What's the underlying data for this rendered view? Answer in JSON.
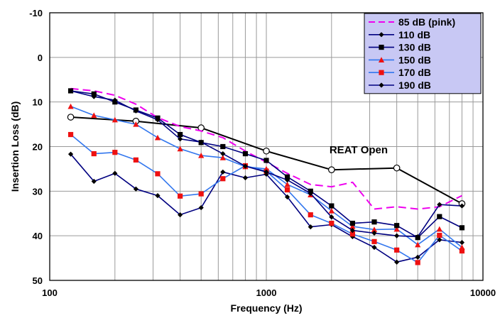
{
  "chart_data": {
    "type": "line",
    "title": "",
    "xlabel": "Frequency (Hz)",
    "ylabel": "Insertion Loss (dB)",
    "x_scale": "log",
    "xlim": [
      100,
      10000
    ],
    "ylim": [
      50,
      -10
    ],
    "y_inverted": true,
    "grid": true,
    "legend_position": "top-right",
    "x_ticks": [
      {
        "value": 100,
        "label": "100"
      },
      {
        "value": 1000,
        "label": "1000"
      },
      {
        "value": 10000,
        "label": "10000"
      }
    ],
    "y_ticks": [
      {
        "value": -10,
        "label": "-10"
      },
      {
        "value": 0,
        "label": "0"
      },
      {
        "value": 10,
        "label": "10"
      },
      {
        "value": 20,
        "label": "20"
      },
      {
        "value": 30,
        "label": "30"
      },
      {
        "value": 40,
        "label": "40"
      },
      {
        "value": 50,
        "label": "50"
      }
    ],
    "annotations": [
      {
        "text": "REAT Open",
        "x": 2000,
        "y": 21
      }
    ],
    "series": [
      {
        "name": "85 dB (pink)",
        "color": "#ee00ee",
        "dash": "dash",
        "marker": "none",
        "width": 2,
        "in_legend": true,
        "points": [
          [
            125,
            7
          ],
          [
            160,
            7.5
          ],
          [
            200,
            8.5
          ],
          [
            250,
            10.5
          ],
          [
            315,
            13.5
          ],
          [
            400,
            15.5
          ],
          [
            500,
            16.5
          ],
          [
            630,
            18
          ],
          [
            800,
            21
          ],
          [
            1000,
            23.5
          ],
          [
            1250,
            26
          ],
          [
            1600,
            28.5
          ],
          [
            2000,
            29
          ],
          [
            2500,
            28
          ],
          [
            3150,
            34
          ],
          [
            4000,
            33.5
          ],
          [
            5000,
            34
          ],
          [
            6300,
            33.5
          ],
          [
            8000,
            31
          ]
        ]
      },
      {
        "name": "110 dB",
        "color": "#000080",
        "dash": "solid",
        "marker": "diamond",
        "marker_color": "#000000",
        "width": 1.6,
        "in_legend": true,
        "points": [
          [
            125,
            7.5
          ],
          [
            160,
            8.8
          ],
          [
            200,
            9.6
          ],
          [
            250,
            12
          ],
          [
            315,
            14
          ],
          [
            400,
            18.3
          ],
          [
            500,
            19
          ],
          [
            630,
            21.6
          ],
          [
            800,
            24.4
          ],
          [
            1000,
            25.7
          ],
          [
            1250,
            27.5
          ],
          [
            1600,
            30.5
          ],
          [
            2000,
            35.8
          ],
          [
            2500,
            38.8
          ],
          [
            3150,
            39.4
          ],
          [
            4000,
            40
          ],
          [
            5000,
            40.2
          ],
          [
            6300,
            33
          ],
          [
            8000,
            33.3
          ]
        ]
      },
      {
        "name": "130 dB",
        "color": "#000080",
        "dash": "solid",
        "marker": "square",
        "marker_color": "#000000",
        "width": 1.6,
        "in_legend": true,
        "points": [
          [
            125,
            7.5
          ],
          [
            160,
            8.2
          ],
          [
            200,
            10
          ],
          [
            250,
            11.8
          ],
          [
            315,
            13.6
          ],
          [
            400,
            17.3
          ],
          [
            500,
            19.1
          ],
          [
            630,
            20
          ],
          [
            800,
            21.6
          ],
          [
            1000,
            23.1
          ],
          [
            1250,
            26.8
          ],
          [
            1600,
            30
          ],
          [
            2000,
            33.3
          ],
          [
            2500,
            37.2
          ],
          [
            3150,
            36.9
          ],
          [
            4000,
            37.7
          ],
          [
            5000,
            40.4
          ],
          [
            6300,
            35.7
          ],
          [
            8000,
            38.2
          ]
        ]
      },
      {
        "name": "150 dB",
        "color": "#3377ee",
        "dash": "solid",
        "marker": "triangle",
        "marker_color": "#ee1111",
        "width": 1.6,
        "in_legend": true,
        "points": [
          [
            125,
            11
          ],
          [
            160,
            13
          ],
          [
            200,
            14
          ],
          [
            250,
            15
          ],
          [
            315,
            18
          ],
          [
            400,
            20.5
          ],
          [
            500,
            22
          ],
          [
            630,
            22.5
          ],
          [
            800,
            24.5
          ],
          [
            1000,
            25
          ],
          [
            1250,
            28.5
          ],
          [
            1600,
            30.8
          ],
          [
            2000,
            34.4
          ],
          [
            2500,
            37.9
          ],
          [
            3150,
            38.6
          ],
          [
            4000,
            38.5
          ],
          [
            5000,
            42
          ],
          [
            6300,
            38.5
          ],
          [
            8000,
            42.6
          ]
        ]
      },
      {
        "name": "170 dB",
        "color": "#3377ee",
        "dash": "solid",
        "marker": "square",
        "marker_color": "#ee1111",
        "width": 1.6,
        "in_legend": true,
        "points": [
          [
            125,
            17.3
          ],
          [
            160,
            21.6
          ],
          [
            200,
            21.3
          ],
          [
            250,
            23
          ],
          [
            315,
            26.1
          ],
          [
            400,
            31.1
          ],
          [
            500,
            30.6
          ],
          [
            630,
            27.2
          ],
          [
            800,
            24.3
          ],
          [
            1000,
            25.5
          ],
          [
            1250,
            29.7
          ],
          [
            1600,
            35.3
          ],
          [
            2000,
            37.2
          ],
          [
            2500,
            39.6
          ],
          [
            3150,
            41.3
          ],
          [
            4000,
            43.2
          ],
          [
            5000,
            46
          ],
          [
            6300,
            39.9
          ],
          [
            8000,
            43.4
          ]
        ]
      },
      {
        "name": "190 dB",
        "color": "#000080",
        "dash": "solid",
        "marker": "diamond",
        "marker_color": "#000000",
        "width": 1.6,
        "in_legend": true,
        "points": [
          [
            125,
            21.7
          ],
          [
            160,
            27.8
          ],
          [
            200,
            26
          ],
          [
            250,
            29.5
          ],
          [
            315,
            31
          ],
          [
            400,
            35.3
          ],
          [
            500,
            33.7
          ],
          [
            630,
            25.7
          ],
          [
            800,
            27
          ],
          [
            1000,
            26.2
          ],
          [
            1250,
            31.3
          ],
          [
            1600,
            38
          ],
          [
            2000,
            37.5
          ],
          [
            2500,
            40.2
          ],
          [
            3150,
            42.6
          ],
          [
            4000,
            45.9
          ],
          [
            5000,
            44.8
          ],
          [
            6300,
            40.9
          ],
          [
            8000,
            41.5
          ]
        ]
      },
      {
        "name": "REAT Open",
        "color": "#000000",
        "dash": "solid",
        "marker": "circle-open",
        "marker_color": "#000000",
        "width": 2,
        "in_legend": false,
        "points": [
          [
            125,
            13.4
          ],
          [
            250,
            14.3
          ],
          [
            500,
            15.8
          ],
          [
            1000,
            21
          ],
          [
            2000,
            25.2
          ],
          [
            4000,
            24.8
          ],
          [
            8000,
            32.8
          ]
        ]
      }
    ]
  }
}
